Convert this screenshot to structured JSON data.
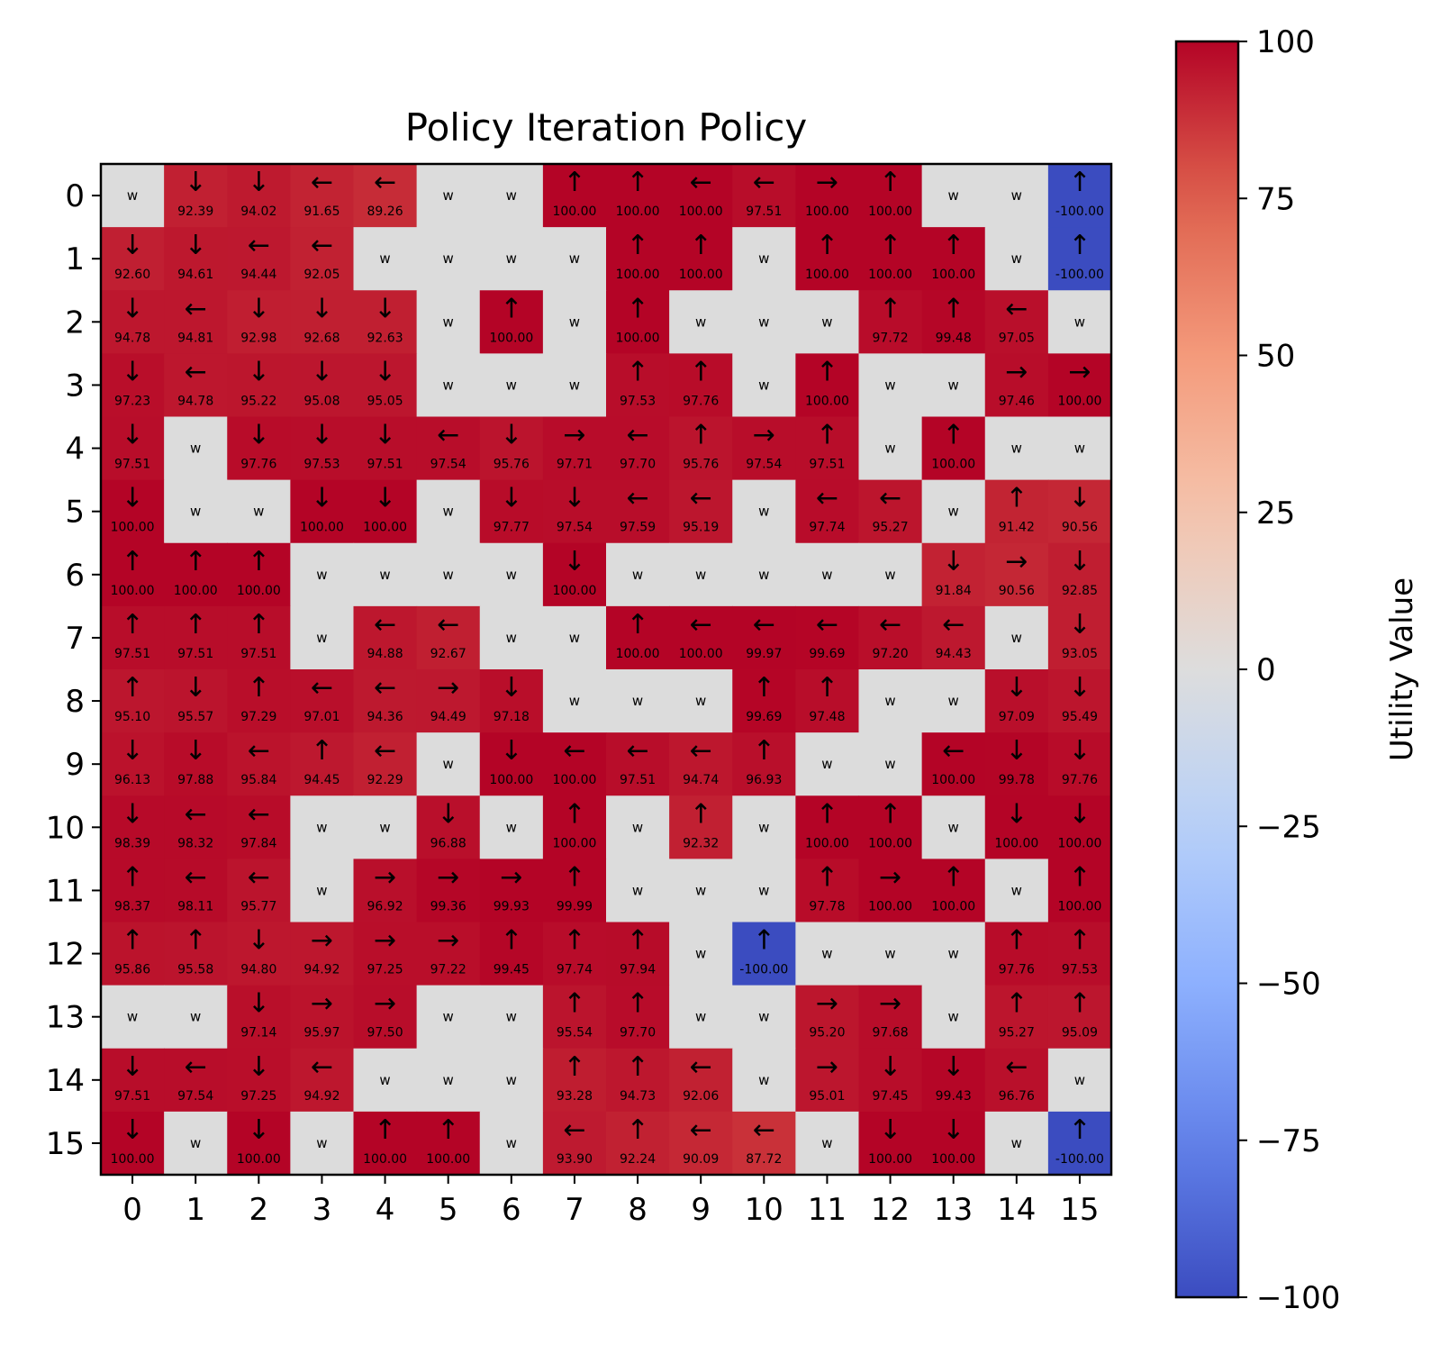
{
  "chart_data": {
    "type": "heatmap",
    "title": "Policy Iteration Policy",
    "colorbar_label": "Utility Value",
    "colorbar_ticks": [
      "100",
      "75",
      "50",
      "25",
      "0",
      "−25",
      "−50",
      "−75",
      "−100"
    ],
    "colorbar_tick_values": [
      100,
      75,
      50,
      25,
      0,
      -25,
      -50,
      -75,
      -100
    ],
    "value_range": [
      -100,
      100
    ],
    "colormap": "coolwarm",
    "wall_color": "#dcdcdc",
    "x_ticks": [
      "0",
      "1",
      "2",
      "3",
      "4",
      "5",
      "6",
      "7",
      "8",
      "9",
      "10",
      "11",
      "12",
      "13",
      "14",
      "15"
    ],
    "y_ticks": [
      "0",
      "1",
      "2",
      "3",
      "4",
      "5",
      "6",
      "7",
      "8",
      "9",
      "10",
      "11",
      "12",
      "13",
      "14",
      "15"
    ],
    "wall_label": "w",
    "grid": [
      [
        "w",
        "↓",
        "↓",
        "←",
        "←",
        "w",
        "w",
        "↑",
        "↑",
        "←",
        "←",
        "→",
        "↑",
        "w",
        "w",
        "↑"
      ],
      [
        "↓",
        "↓",
        "←",
        "←",
        "w",
        "w",
        "w",
        "w",
        "↑",
        "↑",
        "w",
        "↑",
        "↑",
        "↑",
        "w",
        "↑"
      ],
      [
        "↓",
        "←",
        "↓",
        "↓",
        "↓",
        "w",
        "↑",
        "w",
        "↑",
        "w",
        "w",
        "w",
        "↑",
        "↑",
        "←",
        "w"
      ],
      [
        "↓",
        "←",
        "↓",
        "↓",
        "↓",
        "w",
        "w",
        "w",
        "↑",
        "↑",
        "w",
        "↑",
        "w",
        "w",
        "→",
        "→"
      ],
      [
        "↓",
        "w",
        "↓",
        "↓",
        "↓",
        "←",
        "↓",
        "→",
        "←",
        "↑",
        "→",
        "↑",
        "w",
        "↑",
        "w",
        "w"
      ],
      [
        "↓",
        "w",
        "w",
        "↓",
        "↓",
        "w",
        "↓",
        "↓",
        "←",
        "←",
        "w",
        "←",
        "←",
        "w",
        "↑",
        "↓"
      ],
      [
        "↑",
        "↑",
        "↑",
        "w",
        "w",
        "w",
        "w",
        "↓",
        "w",
        "w",
        "w",
        "w",
        "w",
        "↓",
        "→",
        "↓"
      ],
      [
        "↑",
        "↑",
        "↑",
        "w",
        "←",
        "←",
        "w",
        "w",
        "↑",
        "←",
        "←",
        "←",
        "←",
        "←",
        "w",
        "↓"
      ],
      [
        "↑",
        "↓",
        "↑",
        "←",
        "←",
        "→",
        "↓",
        "w",
        "w",
        "w",
        "↑",
        "↑",
        "w",
        "w",
        "↓",
        "↓"
      ],
      [
        "↓",
        "↓",
        "←",
        "↑",
        "←",
        "w",
        "↓",
        "←",
        "←",
        "←",
        "↑",
        "w",
        "w",
        "←",
        "↓",
        "↓"
      ],
      [
        "↓",
        "←",
        "←",
        "w",
        "w",
        "↓",
        "w",
        "↑",
        "w",
        "↑",
        "w",
        "↑",
        "↑",
        "w",
        "↓",
        "↓"
      ],
      [
        "↑",
        "←",
        "←",
        "w",
        "→",
        "→",
        "→",
        "↑",
        "w",
        "w",
        "w",
        "↑",
        "→",
        "↑",
        "w",
        "↑"
      ],
      [
        "↑",
        "↑",
        "↓",
        "→",
        "→",
        "→",
        "↑",
        "↑",
        "↑",
        "w",
        "↑",
        "w",
        "w",
        "w",
        "↑",
        "↑"
      ],
      [
        "w",
        "w",
        "↓",
        "→",
        "→",
        "w",
        "w",
        "↑",
        "↑",
        "w",
        "w",
        "→",
        "→",
        "w",
        "↑",
        "↑"
      ],
      [
        "↓",
        "←",
        "↓",
        "←",
        "w",
        "w",
        "w",
        "↑",
        "↑",
        "←",
        "w",
        "→",
        "↓",
        "↓",
        "←",
        "w"
      ],
      [
        "↓",
        "w",
        "↓",
        "w",
        "↑",
        "↑",
        "w",
        "←",
        "↑",
        "←",
        "←",
        "w",
        "↓",
        "↓",
        "w",
        "↑"
      ]
    ],
    "values": [
      [
        null,
        "92.39",
        "94.02",
        "91.65",
        "89.26",
        null,
        null,
        "100.00",
        "100.00",
        "100.00",
        "97.51",
        "100.00",
        "100.00",
        null,
        null,
        "-100.00"
      ],
      [
        "92.60",
        "94.61",
        "94.44",
        "92.05",
        null,
        null,
        null,
        null,
        "100.00",
        "100.00",
        null,
        "100.00",
        "100.00",
        "100.00",
        null,
        "-100.00"
      ],
      [
        "94.78",
        "94.81",
        "92.98",
        "92.68",
        "92.63",
        null,
        "100.00",
        null,
        "100.00",
        null,
        null,
        null,
        "97.72",
        "99.48",
        "97.05",
        null
      ],
      [
        "97.23",
        "94.78",
        "95.22",
        "95.08",
        "95.05",
        null,
        null,
        null,
        "97.53",
        "97.76",
        null,
        "100.00",
        null,
        null,
        "97.46",
        "100.00"
      ],
      [
        "97.51",
        null,
        "97.76",
        "97.53",
        "97.51",
        "97.54",
        "95.76",
        "97.71",
        "97.70",
        "95.76",
        "97.54",
        "97.51",
        null,
        "100.00",
        null,
        null
      ],
      [
        "100.00",
        null,
        null,
        "100.00",
        "100.00",
        null,
        "97.77",
        "97.54",
        "97.59",
        "95.19",
        null,
        "97.74",
        "95.27",
        null,
        "91.42",
        "90.56"
      ],
      [
        "100.00",
        "100.00",
        "100.00",
        null,
        null,
        null,
        null,
        "100.00",
        null,
        null,
        null,
        null,
        null,
        "91.84",
        "90.56",
        "92.85"
      ],
      [
        "97.51",
        "97.51",
        "97.51",
        null,
        "94.88",
        "92.67",
        null,
        null,
        "100.00",
        "100.00",
        "99.97",
        "99.69",
        "97.20",
        "94.43",
        null,
        "93.05"
      ],
      [
        "95.10",
        "95.57",
        "97.29",
        "97.01",
        "94.36",
        "94.49",
        "97.18",
        null,
        null,
        null,
        "99.69",
        "97.48",
        null,
        null,
        "97.09",
        "95.49"
      ],
      [
        "96.13",
        "97.88",
        "95.84",
        "94.45",
        "92.29",
        null,
        "100.00",
        "100.00",
        "97.51",
        "94.74",
        "96.93",
        null,
        null,
        "100.00",
        "99.78",
        "97.76"
      ],
      [
        "98.39",
        "98.32",
        "97.84",
        null,
        null,
        "96.88",
        null,
        "100.00",
        null,
        "92.32",
        null,
        "100.00",
        "100.00",
        null,
        "100.00",
        "100.00"
      ],
      [
        "98.37",
        "98.11",
        "95.77",
        null,
        "96.92",
        "99.36",
        "99.93",
        "99.99",
        null,
        null,
        null,
        "97.78",
        "100.00",
        "100.00",
        null,
        "100.00"
      ],
      [
        "95.86",
        "95.58",
        "94.80",
        "94.92",
        "97.25",
        "97.22",
        "99.45",
        "97.74",
        "97.94",
        null,
        "-100.00",
        null,
        null,
        null,
        "97.76",
        "97.53"
      ],
      [
        null,
        null,
        "97.14",
        "95.97",
        "97.50",
        null,
        null,
        "95.54",
        "97.70",
        null,
        null,
        "95.20",
        "97.68",
        null,
        "95.27",
        "95.09"
      ],
      [
        "97.51",
        "97.54",
        "97.25",
        "94.92",
        null,
        null,
        null,
        "93.28",
        "94.73",
        "92.06",
        null,
        "95.01",
        "97.45",
        "99.43",
        "96.76",
        null
      ],
      [
        "100.00",
        null,
        "100.00",
        null,
        "100.00",
        "100.00",
        null,
        "93.90",
        "92.24",
        "90.09",
        "87.72",
        null,
        "100.00",
        "100.00",
        null,
        "-100.00"
      ]
    ]
  }
}
